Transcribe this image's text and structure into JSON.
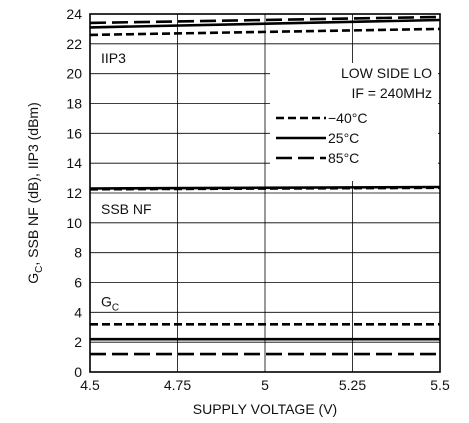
{
  "chart_data": {
    "type": "line",
    "xlabel": "SUPPLY VOLTAGE (V)",
    "ylabel": {
      "pre": "G",
      "sub": "C",
      "post": ", SSB NF (dB), IIP3 (dBm)"
    },
    "xlim": [
      4.5,
      5.5
    ],
    "ylim": [
      0,
      24
    ],
    "x_ticks": [
      "4.5",
      "4.75",
      "5",
      "5.25",
      "5.5"
    ],
    "y_ticks": [
      "0",
      "2",
      "4",
      "6",
      "8",
      "10",
      "12",
      "14",
      "16",
      "18",
      "20",
      "22",
      "24"
    ],
    "grid": true,
    "legend": {
      "placement": "right",
      "heading": [
        "LOW SIDE LO",
        "IF = 240MHz"
      ],
      "entries": [
        {
          "label": "−40°C",
          "dash": "dashed"
        },
        {
          "label": "25°C",
          "dash": "solid"
        },
        {
          "label": "85°C",
          "dash": "long-dashed"
        }
      ]
    },
    "annotations": [
      {
        "text": "IIP3",
        "x": 4.52,
        "y": 20.7
      },
      {
        "text": "SSB NF",
        "x": 4.52,
        "y": 10.6
      },
      {
        "text": "G",
        "sub": "C",
        "x": 4.52,
        "y": 4.4
      }
    ],
    "series": [
      {
        "group": "IIP3",
        "temp": "−40°C",
        "dash": "dashed",
        "x": [
          4.5,
          5.5
        ],
        "values": [
          22.6,
          23.0
        ]
      },
      {
        "group": "IIP3",
        "temp": "25°C",
        "dash": "solid",
        "x": [
          4.5,
          5.5
        ],
        "values": [
          23.1,
          23.6
        ]
      },
      {
        "group": "IIP3",
        "temp": "85°C",
        "dash": "long-dashed",
        "x": [
          4.5,
          5.5
        ],
        "values": [
          23.4,
          23.8
        ]
      },
      {
        "group": "SSB NF",
        "temp": "−40°C",
        "dash": "dashed",
        "x": [
          4.5,
          5.5
        ],
        "values": [
          12.25,
          12.35
        ]
      },
      {
        "group": "SSB NF",
        "temp": "25°C",
        "dash": "solid",
        "x": [
          4.5,
          5.5
        ],
        "values": [
          12.3,
          12.4
        ]
      },
      {
        "group": "G_C",
        "temp": "−40°C",
        "dash": "dashed",
        "x": [
          4.5,
          5.5
        ],
        "values": [
          3.2,
          3.2
        ]
      },
      {
        "group": "G_C",
        "temp": "25°C",
        "dash": "solid",
        "x": [
          4.5,
          5.5
        ],
        "values": [
          2.2,
          2.2
        ]
      },
      {
        "group": "G_C",
        "temp": "85°C",
        "dash": "long-dashed",
        "x": [
          4.5,
          5.5
        ],
        "values": [
          1.2,
          1.2
        ]
      }
    ]
  }
}
